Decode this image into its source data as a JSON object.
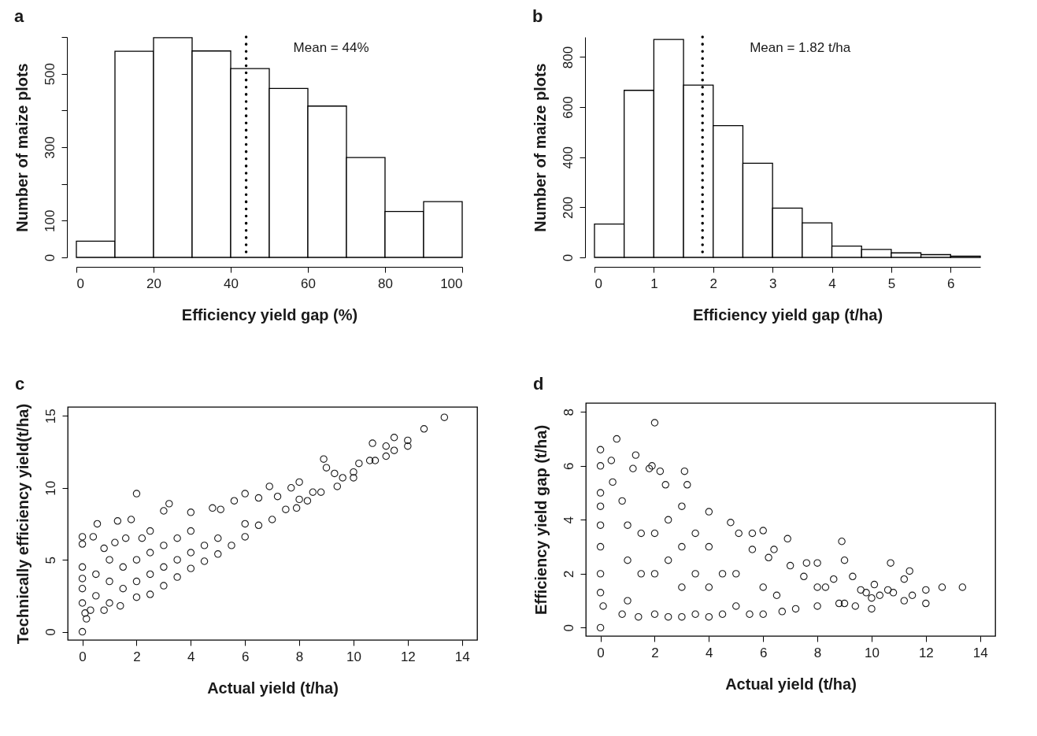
{
  "chart_data": [
    {
      "type": "histogram",
      "title": "a",
      "xlabel": "Efficiency yield gap (%)",
      "ylabel": "Number of maize plots",
      "color": "#ffffff",
      "bins": [
        0,
        10,
        20,
        30,
        40,
        50,
        60,
        70,
        80,
        90,
        100
      ],
      "values": [
        44,
        561,
        598,
        562,
        514,
        460,
        412,
        272,
        125,
        152
      ],
      "xlim": [
        0,
        100
      ],
      "xticks": [
        0,
        20,
        40,
        60,
        80,
        100
      ],
      "ylim": [
        0,
        600
      ],
      "yticks": [
        0,
        100,
        {
          "value": 200,
          "label": null
        },
        300,
        {
          "value": 400,
          "label": null
        },
        500,
        {
          "value": 600,
          "label": null
        }
      ],
      "ref_lines": [
        {
          "axis": "x",
          "value": 44,
          "label": "Mean = 44%",
          "line_style": "dotted",
          "color": "#000000"
        }
      ],
      "grid": false
    },
    {
      "type": "histogram",
      "title": "b",
      "xlabel": "Efficiency yield gap (t/ha)",
      "ylabel": "Number of maize plots",
      "color": "#ffffff",
      "bins": [
        0,
        0.5,
        1,
        1.5,
        2,
        2.5,
        3,
        3.5,
        4,
        4.5,
        5,
        5.5,
        6,
        6.5
      ],
      "values": [
        133,
        667,
        870,
        688,
        526,
        376,
        197,
        138,
        45,
        32,
        18,
        11,
        5
      ],
      "xlim": [
        0,
        6.5
      ],
      "xticks": [
        0,
        1,
        2,
        3,
        4,
        5,
        6
      ],
      "ylim": [
        0,
        880
      ],
      "yticks": [
        0,
        200,
        400,
        600,
        800
      ],
      "ref_lines": [
        {
          "axis": "x",
          "value": 1.82,
          "label": "Mean = 1.82 t/ha",
          "line_style": "dotted",
          "color": "#000000"
        }
      ],
      "grid": false
    },
    {
      "type": "scatter",
      "title": "c",
      "xlabel": "Actual yield (t/ha)",
      "ylabel": "Technically efficiency yield(t/ha)",
      "color": "#1a1a1a",
      "marker": "circle",
      "x": [
        0,
        0,
        0,
        0,
        0,
        0,
        0,
        0.1,
        0.15,
        0.3,
        0.4,
        0.55,
        0.5,
        0.5,
        0.8,
        0.8,
        1,
        1,
        1,
        1.2,
        1.3,
        1.4,
        1.5,
        1.5,
        1.6,
        1.8,
        2,
        2,
        2,
        2,
        2.2,
        2.5,
        2.5,
        2.5,
        2.5,
        3,
        3,
        3,
        3,
        3.2,
        3.5,
        3.5,
        3.5,
        4,
        4,
        4,
        4,
        4.5,
        4.5,
        4.8,
        5,
        5,
        5.1,
        5.5,
        5.6,
        6,
        6,
        6,
        6.5,
        6.5,
        6.9,
        7,
        7.2,
        7.5,
        7.7,
        7.9,
        8,
        8,
        8.3,
        8.5,
        8.8,
        8.9,
        9,
        9.3,
        9.4,
        9.6,
        10,
        10,
        10.2,
        10.6,
        10.7,
        10.8,
        11.2,
        11.2,
        11.5,
        11.5,
        12,
        12,
        12.6,
        13.35
      ],
      "values": [
        0,
        2,
        3,
        3.7,
        4.5,
        6.1,
        6.6,
        1.3,
        0.9,
        1.5,
        6.6,
        7.5,
        2.5,
        4,
        1.5,
        5.8,
        2,
        3.5,
        5,
        6.2,
        7.7,
        1.8,
        3,
        4.5,
        6.5,
        7.8,
        2.4,
        3.5,
        5,
        9.6,
        6.5,
        2.6,
        4,
        5.5,
        7,
        3.2,
        4.5,
        6,
        8.4,
        8.9,
        3.8,
        5,
        6.5,
        4.4,
        5.5,
        7,
        8.3,
        4.9,
        6,
        8.6,
        5.4,
        6.5,
        8.5,
        6,
        9.1,
        6.6,
        7.5,
        9.6,
        7.4,
        9.3,
        10.1,
        7.8,
        9.4,
        8.5,
        10,
        8.6,
        9.2,
        10.4,
        9.1,
        9.7,
        9.7,
        12,
        11.4,
        11,
        10.1,
        10.7,
        10.7,
        11.1,
        11.7,
        11.9,
        13.1,
        11.9,
        12.2,
        12.9,
        12.6,
        13.5,
        12.9,
        13.3,
        14.1,
        14.9
      ],
      "xlim": [
        -0.54,
        14.56
      ],
      "xticks": [
        0,
        2,
        4,
        6,
        8,
        10,
        12,
        14
      ],
      "ylim": [
        -0.57,
        15.62
      ],
      "yticks": [
        0,
        5,
        10,
        15
      ],
      "grid": false
    },
    {
      "type": "scatter",
      "title": "d",
      "xlabel": "Actual yield (t/ha)",
      "ylabel": "Efficiency yield gap (t/ha)",
      "color": "#1a1a1a",
      "marker": "circle",
      "x": [
        0,
        0,
        0,
        0,
        0,
        0,
        0,
        0,
        0,
        0.1,
        0.4,
        0.45,
        0.6,
        0.8,
        0.8,
        1,
        1,
        1,
        1.2,
        1.3,
        1.4,
        1.5,
        1.5,
        1.8,
        1.9,
        2,
        2,
        2,
        2,
        2.2,
        2.4,
        2.5,
        2.5,
        2.5,
        3,
        3,
        3,
        3,
        3.1,
        3.2,
        3.5,
        3.5,
        3.5,
        4,
        4,
        4,
        4,
        4.5,
        4.5,
        4.8,
        5,
        5,
        5.1,
        5.5,
        5.6,
        5.6,
        6,
        6,
        6,
        6.2,
        6.4,
        6.5,
        6.7,
        6.9,
        7,
        7.2,
        7.5,
        7.6,
        8,
        8,
        8,
        8.3,
        8.6,
        8.8,
        8.9,
        9,
        9,
        9.3,
        9.4,
        9.6,
        9.8,
        10,
        10,
        10.1,
        10.3,
        10.6,
        10.7,
        10.8,
        11.2,
        11.2,
        11.4,
        11.5,
        12,
        12,
        12.6,
        13.35
      ],
      "values": [
        0,
        1.3,
        2,
        3,
        3.8,
        4.5,
        5,
        6,
        6.6,
        0.8,
        6.2,
        5.4,
        7,
        0.5,
        4.7,
        1,
        2.5,
        3.8,
        5.9,
        6.4,
        0.4,
        2,
        3.5,
        5.9,
        6,
        0.5,
        2,
        3.5,
        7.6,
        5.8,
        5.3,
        0.4,
        2.5,
        4,
        0.4,
        1.5,
        3,
        4.5,
        5.8,
        5.3,
        0.5,
        2,
        3.5,
        0.4,
        1.5,
        3,
        4.3,
        0.5,
        2,
        3.9,
        0.8,
        2,
        3.5,
        0.5,
        3.5,
        2.9,
        0.5,
        1.5,
        3.6,
        2.6,
        2.9,
        1.2,
        0.6,
        3.3,
        2.3,
        0.7,
        1.9,
        2.4,
        0.8,
        1.5,
        2.4,
        1.5,
        1.8,
        0.9,
        3.2,
        2.5,
        0.9,
        1.9,
        0.8,
        1.4,
        1.3,
        0.7,
        1.1,
        1.6,
        1.2,
        1.4,
        2.4,
        1.3,
        1,
        1.8,
        2.1,
        1.2,
        0.9,
        1.4,
        1.5,
        1.5
      ],
      "xlim": [
        -0.54,
        14.56
      ],
      "xticks": [
        0,
        2,
        4,
        6,
        8,
        10,
        12,
        14
      ],
      "ylim": [
        -0.31,
        8.33
      ],
      "yticks": [
        0,
        2,
        4,
        6,
        8
      ],
      "grid": false
    }
  ]
}
